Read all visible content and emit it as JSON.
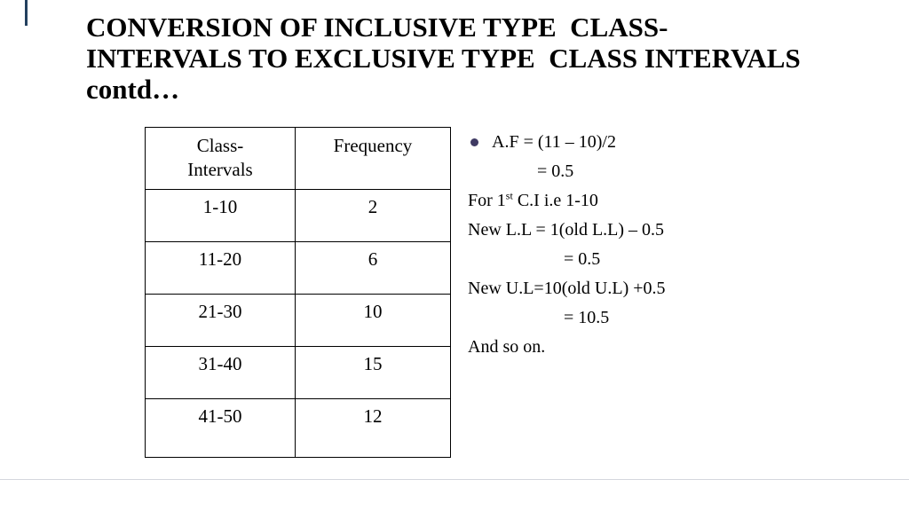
{
  "title": {
    "line1": "CONVERSION OF INCLUSIVE TYPE  CLASS-",
    "line2": "INTERVALS TO EXCLUSIVE TYPE  CLASS INTERVALS",
    "line3": "contd…"
  },
  "table": {
    "header": {
      "col1_line1": "Class-",
      "col1_line2": "Intervals",
      "col2": "Frequency"
    },
    "rows": [
      {
        "interval": "1-10",
        "frequency": "2"
      },
      {
        "interval": "11-20",
        "frequency": "6"
      },
      {
        "interval": "21-30",
        "frequency": "10"
      },
      {
        "interval": "31-40",
        "frequency": "15"
      },
      {
        "interval": "41-50",
        "frequency": "12"
      }
    ]
  },
  "notes": {
    "bullet_color": "#3f3a63",
    "line1": "A.F = (11 – 10)/2",
    "line2": "= 0.5",
    "line3_prefix": "For 1",
    "line3_sup": "st",
    "line3_suffix": " C.I i.e 1-10",
    "line4": "New L.L = 1(old L.L) – 0.5",
    "line5": "= 0.5",
    "line6": "New U.L=10(old U.L) +0.5",
    "line7": "= 10.5",
    "line8": "And so on."
  }
}
